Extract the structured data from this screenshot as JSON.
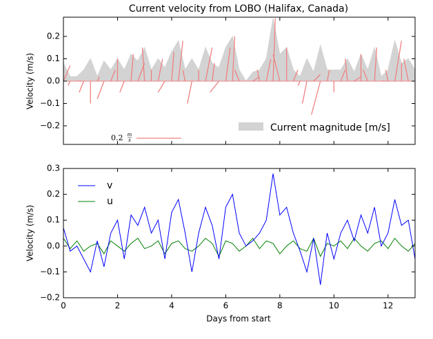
{
  "chart_data": [
    {
      "type": "quiver",
      "title": "Current velocity from LOBO (Halifax, Canada)",
      "ylabel": "Velocity (m/s)",
      "ylim": [
        -0.283,
        0.286
      ],
      "yticks": [
        {
          "value": -0.2,
          "label": "−0.2"
        },
        {
          "value": -0.1,
          "label": "−0.1"
        },
        {
          "value": 0,
          "label": "0.0"
        },
        0.1,
        0.2
      ],
      "magnitude_name": "Current magnitude [m/s]",
      "magnitude_color": "#d3d3d3",
      "arrow_color": "#f08080",
      "quiver_key": {
        "value": 0.2,
        "numerator": "m",
        "denominator": "s"
      },
      "values": [
        0.08,
        0.02,
        0.02,
        0.05,
        0.1,
        0.02,
        0.09,
        0.05,
        0.1,
        0.05,
        0.12,
        0.09,
        0.15,
        0.05,
        0.1,
        0.06,
        0.13,
        0.18,
        0.05,
        0.1,
        0.05,
        0.15,
        0.08,
        0.06,
        0.15,
        0.2,
        0.05,
        0.0,
        0.04,
        0.05,
        0.1,
        0.28,
        0.12,
        0.15,
        0.05,
        0.02,
        0.1,
        0.04,
        0.16,
        0.05,
        0.05,
        0.05,
        0.1,
        0.04,
        0.12,
        0.05,
        0.15,
        0.02,
        0.05,
        0.18,
        0.08,
        0.1,
        0.05
      ]
    },
    {
      "type": "line",
      "xlabel": "Days from start",
      "ylabel": "Velocity (m/s)",
      "xlim": [
        0,
        13
      ],
      "xticks": [
        0,
        2,
        4,
        6,
        8,
        10,
        12
      ],
      "ylim": [
        -0.2,
        0.3
      ],
      "yticks": [
        {
          "value": -0.2,
          "label": "−0.2"
        },
        {
          "value": -0.1,
          "label": "−0.1"
        },
        {
          "value": 0,
          "label": "0.0"
        },
        0.1,
        0.2,
        0.3
      ],
      "legend": "upper left",
      "x": [
        0,
        0.25,
        0.5,
        0.75,
        1,
        1.25,
        1.5,
        1.75,
        2,
        2.25,
        2.5,
        2.75,
        3,
        3.25,
        3.5,
        3.75,
        4,
        4.25,
        4.5,
        4.75,
        5,
        5.25,
        5.5,
        5.75,
        6,
        6.25,
        6.5,
        6.75,
        7,
        7.25,
        7.5,
        7.75,
        8,
        8.25,
        8.5,
        8.75,
        9,
        9.25,
        9.5,
        9.75,
        10,
        10.25,
        10.5,
        10.75,
        11,
        11.25,
        11.5,
        11.75,
        12,
        12.25,
        12.5,
        12.75,
        13
      ],
      "series": [
        {
          "name": "v",
          "color": "#0000ff",
          "values": [
            0.07,
            -0.02,
            0.0,
            -0.05,
            -0.1,
            0.02,
            -0.08,
            0.05,
            0.1,
            -0.05,
            0.12,
            0.08,
            0.15,
            0.05,
            0.1,
            -0.05,
            0.13,
            0.18,
            0.05,
            -0.1,
            0.05,
            0.15,
            0.08,
            -0.05,
            0.15,
            0.2,
            0.05,
            0.0,
            0.02,
            0.05,
            0.1,
            0.28,
            0.12,
            0.15,
            0.05,
            -0.02,
            -0.1,
            0.03,
            -0.15,
            0.05,
            -0.05,
            0.05,
            0.1,
            0.02,
            0.12,
            0.05,
            0.15,
            0.0,
            0.05,
            0.18,
            0.08,
            0.1,
            -0.05
          ]
        },
        {
          "name": "u",
          "color": "#008000",
          "values": [
            0.03,
            -0.01,
            0.02,
            -0.02,
            0.0,
            0.01,
            -0.03,
            0.02,
            0.0,
            -0.02,
            0.01,
            0.03,
            -0.01,
            0.0,
            0.02,
            -0.03,
            0.01,
            0.02,
            -0.01,
            -0.02,
            0.0,
            0.03,
            0.01,
            -0.04,
            0.02,
            0.01,
            -0.02,
            0.0,
            0.03,
            -0.01,
            0.02,
            0.01,
            -0.03,
            0.0,
            0.02,
            -0.01,
            -0.02,
            0.03,
            -0.04,
            0.01,
            0.0,
            0.02,
            -0.01,
            0.03,
            0.0,
            -0.02,
            0.01,
            0.02,
            -0.01,
            0.03,
            0.0,
            -0.02,
            0.01
          ]
        }
      ]
    }
  ]
}
